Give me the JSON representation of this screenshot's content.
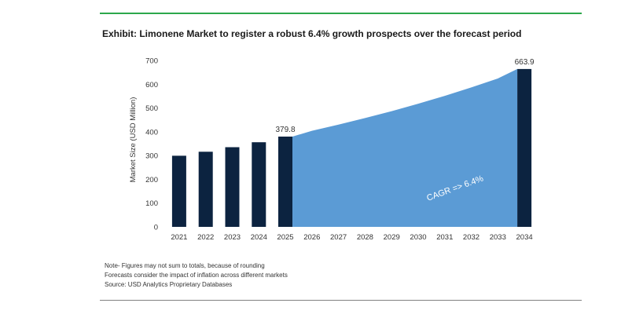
{
  "title": "Exhibit: Limonene Market to register a robust 6.4% growth prospects over the forecast period",
  "notes": [
    "Note- Figures may not sum to totals, because of rounding",
    "Forecasts consider the impact of inflation across different markets",
    "Source: USD Analytics Proprietary Databases"
  ],
  "colors": {
    "bar": "#0c2340",
    "area": "#5b9bd5",
    "rule_top": "#2ca84b"
  },
  "chart_data": {
    "type": "bar",
    "categories": [
      "2021",
      "2022",
      "2023",
      "2024",
      "2025",
      "2026",
      "2027",
      "2028",
      "2029",
      "2030",
      "2031",
      "2032",
      "2033",
      "2034"
    ],
    "bar_values": [
      299,
      316,
      335,
      356,
      379.8,
      null,
      null,
      null,
      null,
      null,
      null,
      null,
      null,
      663.9
    ],
    "area_values": [
      379.8,
      404.1,
      430.0,
      457.5,
      486.8,
      518.0,
      551.1,
      586.4,
      623.9,
      663.9
    ],
    "data_labels": {
      "2025": "379.8",
      "2034": "663.9"
    },
    "annotation": "CAGR =>  6.4%",
    "ylabel": "Market Size (USD Million)",
    "xlabel": "",
    "ylim": [
      0,
      700
    ],
    "yticks": [
      0,
      100,
      200,
      300,
      400,
      500,
      600,
      700
    ],
    "grid": false
  }
}
